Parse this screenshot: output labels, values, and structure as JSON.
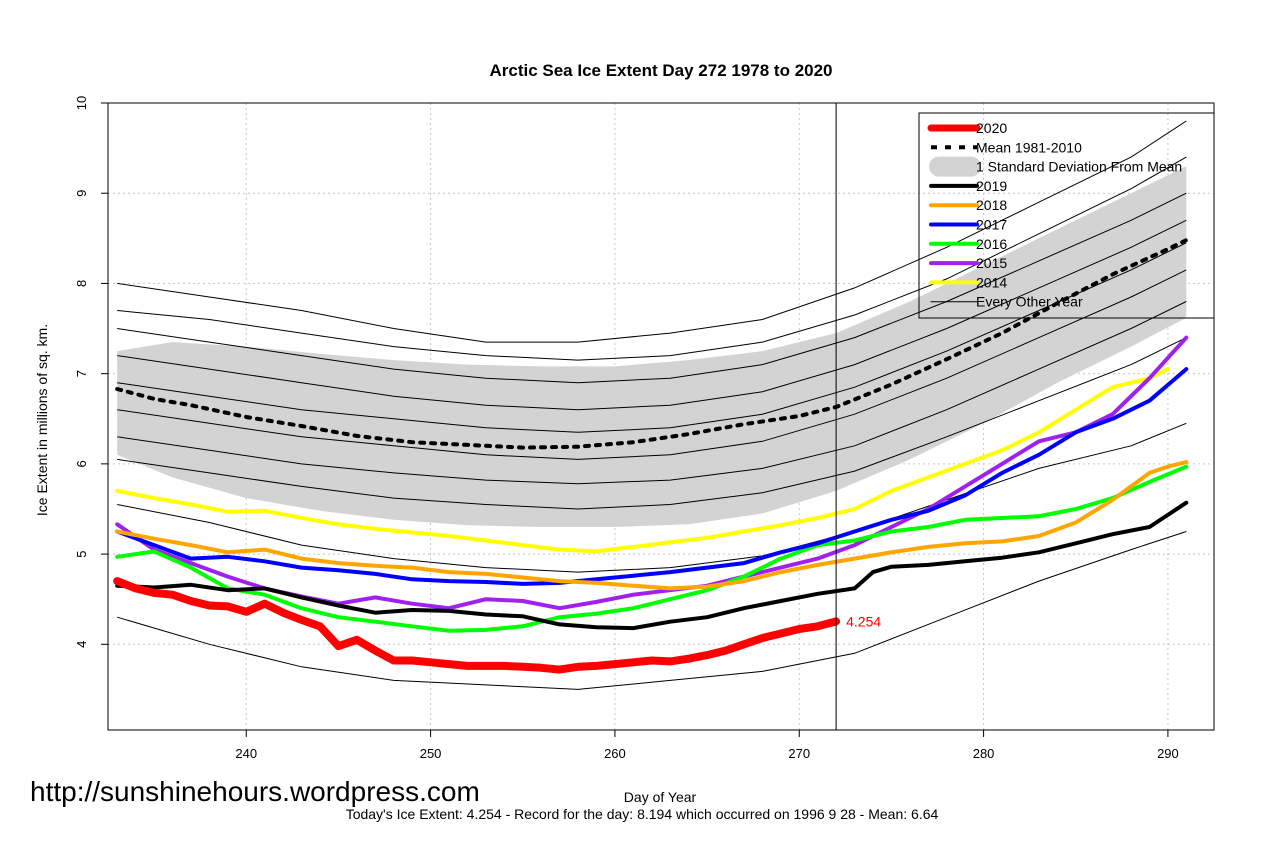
{
  "chart_data": {
    "type": "line",
    "title": "Arctic Sea Ice Extent Day 272 1978 to 2020",
    "xlabel": "Day of Year",
    "ylabel": "Ice Extent in millions of sq. km.",
    "xlim": [
      232.5,
      292.5
    ],
    "ylim": [
      3.05,
      10.0
    ],
    "x_ticks": [
      240,
      250,
      260,
      270,
      280,
      290
    ],
    "y_ticks": [
      4,
      5,
      6,
      7,
      8,
      9,
      10
    ],
    "grid": true,
    "legend_position": "top-right",
    "current_day": 272,
    "current_value_label": "4.254",
    "legend": [
      {
        "label": "2020",
        "color": "#ff0000",
        "style": "thick"
      },
      {
        "label": "Mean 1981-2010",
        "color": "#000000",
        "style": "dotted"
      },
      {
        "label": "1 Standard Deviation From Mean",
        "color": "#d3d3d3",
        "style": "band"
      },
      {
        "label": "2019",
        "color": "#000000",
        "style": "solid"
      },
      {
        "label": "2018",
        "color": "#ffa500",
        "style": "solid"
      },
      {
        "label": "2017",
        "color": "#0000ff",
        "style": "solid"
      },
      {
        "label": "2016",
        "color": "#00ff00",
        "style": "solid"
      },
      {
        "label": "2015",
        "color": "#a020f0",
        "style": "solid"
      },
      {
        "label": "2014",
        "color": "#ffff00",
        "style": "solid"
      },
      {
        "label": "Every Other Year",
        "color": "#000000",
        "style": "thin"
      }
    ],
    "mean": {
      "x": [
        233,
        235,
        237,
        240,
        243,
        246,
        249,
        252,
        255,
        258,
        261,
        264,
        267,
        270,
        272,
        275,
        278,
        281,
        284,
        287,
        290,
        291
      ],
      "values": [
        6.83,
        6.72,
        6.65,
        6.52,
        6.42,
        6.31,
        6.24,
        6.21,
        6.18,
        6.19,
        6.24,
        6.33,
        6.44,
        6.53,
        6.63,
        6.88,
        7.16,
        7.45,
        7.78,
        8.1,
        8.38,
        8.48
      ]
    },
    "std_band": {
      "x": [
        233,
        236,
        240,
        244,
        248,
        252,
        256,
        260,
        264,
        268,
        272,
        276,
        280,
        284,
        288,
        291
      ],
      "upper": [
        7.25,
        7.35,
        7.3,
        7.22,
        7.15,
        7.1,
        7.08,
        7.08,
        7.15,
        7.25,
        7.45,
        7.8,
        8.2,
        8.6,
        9.0,
        9.3
      ],
      "lower": [
        6.1,
        5.85,
        5.62,
        5.48,
        5.38,
        5.32,
        5.3,
        5.3,
        5.33,
        5.45,
        5.7,
        6.05,
        6.45,
        6.9,
        7.3,
        7.62
      ]
    },
    "series": [
      {
        "name": "2020",
        "color": "#ff0000",
        "x": [
          233,
          234,
          235,
          236,
          237,
          238,
          239,
          240,
          241,
          242,
          243,
          244,
          245,
          246,
          247,
          248,
          249,
          250,
          251,
          252,
          253,
          254,
          255,
          256,
          257,
          258,
          259,
          260,
          261,
          262,
          263,
          264,
          265,
          266,
          267,
          268,
          269,
          270,
          271,
          272
        ],
        "values": [
          4.7,
          4.62,
          4.57,
          4.55,
          4.48,
          4.43,
          4.42,
          4.36,
          4.45,
          4.35,
          4.27,
          4.2,
          3.98,
          4.05,
          3.93,
          3.82,
          3.82,
          3.8,
          3.78,
          3.76,
          3.76,
          3.76,
          3.75,
          3.74,
          3.72,
          3.75,
          3.76,
          3.78,
          3.8,
          3.82,
          3.81,
          3.84,
          3.88,
          3.93,
          4.0,
          4.07,
          4.12,
          4.17,
          4.2,
          4.254
        ]
      },
      {
        "name": "2019",
        "color": "#000000",
        "x": [
          233,
          235,
          237,
          239,
          241,
          243,
          245,
          247,
          249,
          251,
          253,
          255,
          257,
          259,
          261,
          263,
          265,
          267,
          269,
          271,
          273,
          274,
          275,
          277,
          279,
          281,
          283,
          285,
          287,
          289,
          291
        ],
        "values": [
          4.65,
          4.63,
          4.66,
          4.6,
          4.62,
          4.52,
          4.43,
          4.35,
          4.38,
          4.37,
          4.33,
          4.31,
          4.22,
          4.19,
          4.18,
          4.25,
          4.3,
          4.4,
          4.48,
          4.56,
          4.62,
          4.8,
          4.86,
          4.88,
          4.92,
          4.96,
          5.02,
          5.12,
          5.22,
          5.3,
          5.57
        ]
      },
      {
        "name": "2018",
        "color": "#ffa500",
        "x": [
          233,
          235,
          237,
          239,
          241,
          243,
          245,
          247,
          249,
          251,
          253,
          255,
          257,
          259,
          261,
          263,
          265,
          267,
          269,
          271,
          273,
          275,
          277,
          279,
          281,
          283,
          285,
          287,
          289,
          290,
          291
        ],
        "values": [
          5.25,
          5.17,
          5.1,
          5.02,
          5.05,
          4.95,
          4.9,
          4.87,
          4.85,
          4.8,
          4.78,
          4.74,
          4.7,
          4.68,
          4.65,
          4.62,
          4.64,
          4.7,
          4.8,
          4.88,
          4.95,
          5.02,
          5.08,
          5.12,
          5.14,
          5.2,
          5.35,
          5.6,
          5.9,
          5.97,
          6.02
        ]
      },
      {
        "name": "2017",
        "color": "#0000ff",
        "x": [
          233,
          235,
          237,
          239,
          241,
          243,
          245,
          247,
          249,
          251,
          253,
          255,
          257,
          259,
          261,
          263,
          265,
          267,
          269,
          271,
          273,
          275,
          277,
          279,
          281,
          283,
          285,
          287,
          289,
          291
        ],
        "values": [
          5.25,
          5.1,
          4.95,
          4.97,
          4.92,
          4.85,
          4.82,
          4.78,
          4.72,
          4.7,
          4.69,
          4.67,
          4.68,
          4.72,
          4.76,
          4.8,
          4.85,
          4.9,
          5.02,
          5.12,
          5.25,
          5.38,
          5.48,
          5.65,
          5.9,
          6.1,
          6.35,
          6.5,
          6.7,
          7.05
        ]
      },
      {
        "name": "2016",
        "color": "#00ff00",
        "x": [
          233,
          235,
          237,
          239,
          241,
          243,
          245,
          247,
          249,
          251,
          253,
          255,
          257,
          259,
          261,
          263,
          265,
          267,
          269,
          271,
          273,
          275,
          277,
          279,
          281,
          283,
          285,
          287,
          289,
          291
        ],
        "values": [
          4.97,
          5.03,
          4.85,
          4.62,
          4.55,
          4.4,
          4.3,
          4.25,
          4.2,
          4.15,
          4.16,
          4.2,
          4.3,
          4.34,
          4.4,
          4.5,
          4.6,
          4.75,
          4.95,
          5.1,
          5.15,
          5.25,
          5.3,
          5.38,
          5.4,
          5.42,
          5.5,
          5.62,
          5.8,
          5.97
        ]
      },
      {
        "name": "2015",
        "color": "#a020f0",
        "x": [
          233,
          235,
          237,
          239,
          241,
          243,
          245,
          247,
          249,
          251,
          253,
          255,
          257,
          259,
          261,
          263,
          265,
          267,
          269,
          271,
          273,
          275,
          277,
          279,
          281,
          283,
          285,
          287,
          289,
          291
        ],
        "values": [
          5.33,
          5.05,
          4.9,
          4.75,
          4.62,
          4.53,
          4.45,
          4.52,
          4.45,
          4.4,
          4.5,
          4.48,
          4.4,
          4.47,
          4.55,
          4.6,
          4.65,
          4.75,
          4.85,
          4.95,
          5.1,
          5.3,
          5.5,
          5.75,
          6.0,
          6.25,
          6.35,
          6.55,
          6.95,
          7.4
        ]
      },
      {
        "name": "2014",
        "color": "#ffff00",
        "x": [
          233,
          235,
          237,
          239,
          241,
          243,
          245,
          247,
          249,
          251,
          253,
          255,
          257,
          259,
          261,
          263,
          265,
          267,
          269,
          271,
          273,
          275,
          277,
          279,
          281,
          283,
          285,
          287,
          289,
          290
        ],
        "values": [
          5.7,
          5.62,
          5.55,
          5.47,
          5.48,
          5.4,
          5.33,
          5.28,
          5.24,
          5.2,
          5.15,
          5.1,
          5.05,
          5.03,
          5.08,
          5.13,
          5.18,
          5.25,
          5.32,
          5.4,
          5.5,
          5.7,
          5.85,
          6.0,
          6.15,
          6.35,
          6.6,
          6.85,
          6.95,
          7.05
        ]
      },
      {
        "name": "other-1",
        "color": "#000000",
        "x": [
          233,
          238,
          243,
          248,
          253,
          258,
          263,
          268,
          273,
          278,
          283,
          288,
          291
        ],
        "values": [
          8.0,
          7.85,
          7.7,
          7.5,
          7.35,
          7.35,
          7.45,
          7.6,
          7.95,
          8.4,
          8.9,
          9.4,
          9.8
        ]
      },
      {
        "name": "other-2",
        "color": "#000000",
        "x": [
          233,
          238,
          243,
          248,
          253,
          258,
          263,
          268,
          273,
          278,
          283,
          288,
          291
        ],
        "values": [
          7.7,
          7.6,
          7.45,
          7.3,
          7.2,
          7.15,
          7.2,
          7.35,
          7.65,
          8.05,
          8.55,
          9.05,
          9.4
        ]
      },
      {
        "name": "other-3",
        "color": "#000000",
        "x": [
          233,
          238,
          243,
          248,
          253,
          258,
          263,
          268,
          273,
          278,
          283,
          288,
          291
        ],
        "values": [
          7.5,
          7.35,
          7.2,
          7.05,
          6.95,
          6.9,
          6.95,
          7.1,
          7.4,
          7.8,
          8.25,
          8.7,
          9.0
        ]
      },
      {
        "name": "other-4",
        "color": "#000000",
        "x": [
          233,
          238,
          243,
          248,
          253,
          258,
          263,
          268,
          273,
          278,
          283,
          288,
          291
        ],
        "values": [
          7.2,
          7.05,
          6.9,
          6.75,
          6.65,
          6.6,
          6.65,
          6.8,
          7.1,
          7.5,
          7.95,
          8.4,
          8.7
        ]
      },
      {
        "name": "other-5",
        "color": "#000000",
        "x": [
          233,
          238,
          243,
          248,
          253,
          258,
          263,
          268,
          273,
          278,
          283,
          288,
          291
        ],
        "values": [
          6.9,
          6.75,
          6.6,
          6.5,
          6.4,
          6.35,
          6.4,
          6.55,
          6.85,
          7.25,
          7.7,
          8.15,
          8.45
        ]
      },
      {
        "name": "other-6",
        "color": "#000000",
        "x": [
          233,
          238,
          243,
          248,
          253,
          258,
          263,
          268,
          273,
          278,
          283,
          288,
          291
        ],
        "values": [
          6.6,
          6.45,
          6.3,
          6.2,
          6.1,
          6.05,
          6.1,
          6.25,
          6.55,
          6.95,
          7.4,
          7.85,
          8.15
        ]
      },
      {
        "name": "other-7",
        "color": "#000000",
        "x": [
          233,
          238,
          243,
          248,
          253,
          258,
          263,
          268,
          273,
          278,
          283,
          288,
          291
        ],
        "values": [
          6.3,
          6.15,
          6.0,
          5.9,
          5.82,
          5.78,
          5.82,
          5.95,
          6.2,
          6.6,
          7.05,
          7.5,
          7.8
        ]
      },
      {
        "name": "other-8",
        "color": "#000000",
        "x": [
          233,
          238,
          243,
          248,
          253,
          258,
          263,
          268,
          273,
          278,
          283,
          288,
          291
        ],
        "values": [
          6.05,
          5.9,
          5.75,
          5.62,
          5.55,
          5.5,
          5.55,
          5.68,
          5.92,
          6.3,
          6.7,
          7.1,
          7.4
        ]
      },
      {
        "name": "other-9",
        "color": "#000000",
        "x": [
          233,
          238,
          243,
          248,
          253,
          258,
          263,
          268,
          273,
          278,
          283,
          288,
          291
        ],
        "values": [
          5.55,
          5.35,
          5.1,
          4.95,
          4.85,
          4.8,
          4.85,
          4.98,
          5.25,
          5.6,
          5.95,
          6.2,
          6.45
        ]
      },
      {
        "name": "other-10",
        "color": "#000000",
        "x": [
          233,
          238,
          243,
          248,
          253,
          258,
          263,
          268,
          273,
          278,
          283,
          288,
          291
        ],
        "values": [
          4.3,
          4.0,
          3.75,
          3.6,
          3.55,
          3.5,
          3.6,
          3.7,
          3.9,
          4.3,
          4.7,
          5.05,
          5.25
        ]
      }
    ]
  },
  "watermark": "http://sunshinehours.wordpress.com",
  "footer": "Today's Ice Extent: 4.254  - Record for the day: 8.194 which occurred on 1996 9 28  - Mean: 6.64"
}
